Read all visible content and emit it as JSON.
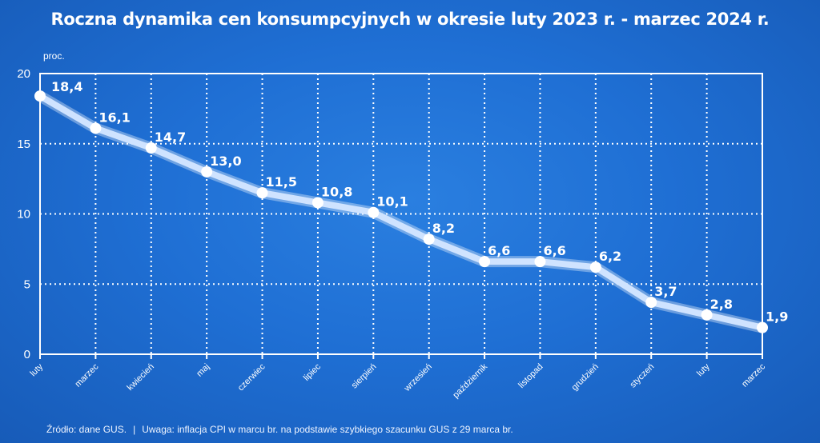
{
  "header": {
    "title": "Roczna dynamika cen konsumpcyjnych w okresie luty 2023 r. - marzec 2024 r."
  },
  "footer": {
    "source": "Źródło: dane GUS.",
    "separator": "|",
    "note": "Uwaga: inflacja CPI w marcu br. na podstawie szybkiego szacunku GUS z 29 marca br."
  },
  "chart_data": {
    "type": "line",
    "title": "Roczna dynamika cen konsumpcyjnych w okresie luty 2023 r. - marzec 2024 r.",
    "ylabel": "proc.",
    "xlabel": "",
    "categories": [
      "luty",
      "marzec",
      "kwiecień",
      "maj",
      "czerwiec",
      "lipiec",
      "sierpień",
      "wrzesień",
      "październik",
      "listopad",
      "grudzień",
      "styczeń",
      "luty",
      "marzec"
    ],
    "values": [
      18.4,
      16.1,
      14.7,
      13.0,
      11.5,
      10.8,
      10.1,
      8.2,
      6.6,
      6.6,
      6.2,
      3.7,
      2.8,
      1.9
    ],
    "value_labels": [
      "18,4",
      "16,1",
      "14,7",
      "13,0",
      "11,5",
      "10,8",
      "10,1",
      "8,2",
      "6,6",
      "6,6",
      "6,2",
      "3,7",
      "2,8",
      "1,9"
    ],
    "ylim": [
      0,
      20
    ],
    "yticks": [
      0,
      5,
      10,
      15,
      20
    ],
    "ytick_labels": [
      "0",
      "5",
      "10",
      "15",
      "20"
    ],
    "grid": true,
    "legend": "none",
    "colors": {
      "line": "#cfe3ff",
      "marker": "#ffffff",
      "frame": "#ffffff"
    }
  }
}
